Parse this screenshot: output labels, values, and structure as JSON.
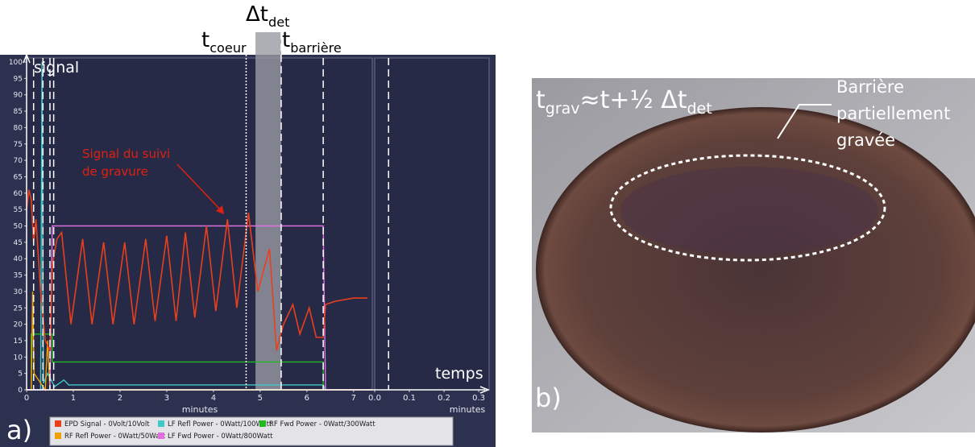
{
  "chart_data": {
    "type": "line",
    "ylabel": "signal",
    "xlabel_arrow": "temps",
    "xlabel": "minutes",
    "x2label": "minutes",
    "panel_label": "a)",
    "annotation": [
      "Signal du suivi",
      "de gravure"
    ],
    "annotation_color": "#e02010",
    "delta_label": {
      "main": "Δt",
      "sub": "det"
    },
    "t_coeur": {
      "main": "t",
      "sub": "coeur"
    },
    "t_barriere": {
      "main": "t",
      "sub": "barrière"
    },
    "xlim": [
      0,
      7.4
    ],
    "xticks": [
      0,
      1,
      2,
      3,
      4,
      5,
      6,
      7
    ],
    "x2lim": [
      0,
      0.33
    ],
    "x2ticks": [
      {
        "value": 0,
        "label": "0.0"
      },
      0.1,
      0.2,
      0.3
    ],
    "ylim": [
      0,
      100
    ],
    "yticks": [
      0,
      5,
      10,
      15,
      20,
      25,
      30,
      35,
      40,
      45,
      50,
      55,
      60,
      65,
      70,
      75,
      80,
      85,
      90,
      95,
      100
    ],
    "vlines": [
      0.15,
      0.35,
      0.5,
      0.58,
      6.35
    ],
    "dotted_vlines": [
      4.7,
      5.45
    ],
    "x2vlines": [
      0.04
    ],
    "band": [
      4.9,
      5.45
    ],
    "series": [
      {
        "name": "EPD Signal - 0Volt/10Volt",
        "color": "#e8401c",
        "x": [
          0,
          0.05,
          0.1,
          0.15,
          0.2,
          0.3,
          0.4,
          0.5,
          0.55,
          0.65,
          0.75,
          0.95,
          1.2,
          1.4,
          1.65,
          1.85,
          2.1,
          2.3,
          2.55,
          2.75,
          3.0,
          3.2,
          3.4,
          3.6,
          3.85,
          4.05,
          4.3,
          4.5,
          4.75,
          4.95,
          5.2,
          5.35,
          5.5,
          5.7,
          5.85,
          6.05,
          6.2,
          6.35,
          6.4,
          6.6,
          7.0,
          7.3
        ],
        "values": [
          55,
          61,
          58,
          45,
          52,
          30,
          15,
          12,
          38,
          46,
          48,
          20,
          46,
          20,
          45,
          20,
          45,
          20,
          46,
          21,
          47,
          21,
          48,
          22,
          50,
          24,
          52,
          25,
          54,
          30,
          43,
          12,
          20,
          26,
          17,
          25,
          16,
          16,
          26,
          27,
          28,
          28
        ]
      },
      {
        "name": "LF Refl Power - 0Watt/100Watt",
        "color": "#3ec8c8",
        "x": [
          0,
          0.3,
          0.33,
          0.36,
          0.45,
          0.6,
          0.8,
          0.9,
          1.5,
          6.35,
          6.4,
          7.4
        ],
        "values": [
          0,
          0,
          100,
          2,
          5,
          1,
          3,
          1.5,
          1.5,
          1.5,
          0,
          0
        ]
      },
      {
        "name": "RF Fwd Power - 0Watt/300Watt",
        "color": "#22b822",
        "x": [
          0,
          0.1,
          0.1,
          0.55,
          0.55,
          6.35,
          6.35,
          7.4
        ],
        "values": [
          0,
          0,
          17,
          17,
          8.5,
          8.5,
          0,
          0
        ]
      },
      {
        "name": "RF Refl Power - 0Watt/50Watt",
        "color": "#f0a000",
        "x": [
          0,
          0.1,
          0.13,
          0.16,
          0.4,
          0.45,
          0.5,
          0.6,
          7.4
        ],
        "values": [
          0,
          0,
          30,
          5,
          0,
          15,
          0,
          0,
          0
        ]
      },
      {
        "name": "LF Fwd Power - 0Watt/800Watt",
        "color": "#e070e0",
        "x": [
          0,
          0.5,
          0.55,
          6.35,
          6.4,
          7.4
        ],
        "values": [
          0,
          0,
          50,
          50,
          0,
          0
        ]
      }
    ]
  },
  "photo": {
    "formula": [
      "t",
      "grav",
      "≈t+½ Δt",
      "det"
    ],
    "label": [
      "Barrière",
      "partiellement",
      "gravée"
    ],
    "panel_label": "b)"
  }
}
